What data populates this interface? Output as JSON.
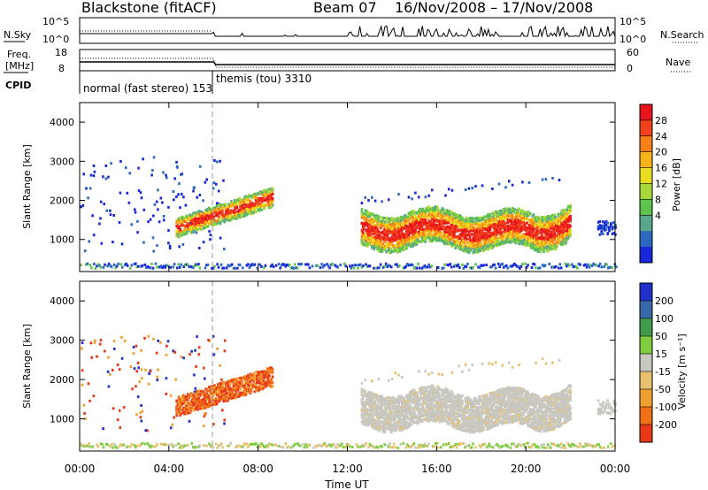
{
  "header": {
    "station": "Blackstone (fitACF)",
    "beam": "Beam 07",
    "date_range": "16/Nov/2008 – 17/Nov/2008"
  },
  "chart_data": [
    {
      "type": "line",
      "name": "noise-panel",
      "left_label": "N.Sky",
      "right_label": "N.Search",
      "left_ticks": [
        "10^5",
        "10^0"
      ],
      "right_ticks": [
        "10^5",
        "10^0"
      ]
    },
    {
      "type": "line",
      "name": "freq-panel",
      "left_label_1": "Freq.",
      "left_label_2": "[MHz]",
      "right_label": "Nave",
      "left_ticks": [
        "18",
        "8"
      ],
      "right_ticks": [
        "60",
        "0"
      ],
      "cpid_label": "CPID",
      "modes": [
        {
          "label": "normal (fast stereo) 153",
          "start_hour": 0,
          "end_hour": 6
        },
        {
          "label": "themis (tou) 3310",
          "start_hour": 6,
          "end_hour": 24
        }
      ]
    },
    {
      "type": "heatmap",
      "name": "power-panel",
      "ylabel": "Slant Range [km]",
      "ylim": [
        180,
        4500
      ],
      "yticks": [
        1000,
        2000,
        3000,
        4000
      ],
      "xlim": [
        0,
        24
      ],
      "xticks": [
        "00:00",
        "04:00",
        "08:00",
        "12:00",
        "16:00",
        "20:00",
        "00:00"
      ],
      "colorbar": {
        "label": "Power [dB]",
        "ticks": [
          "28",
          "24",
          "20",
          "16",
          "12",
          "8",
          "4"
        ],
        "colors": [
          "#e8141c",
          "#f0401c",
          "#f88018",
          "#f8b418",
          "#e8dc20",
          "#a8d838",
          "#5cc44c",
          "#5aa88c",
          "#2c68c0",
          "#1828d8"
        ]
      }
    },
    {
      "type": "heatmap",
      "name": "velocity-panel",
      "ylabel": "Slant Range [km]",
      "ylim": [
        180,
        4500
      ],
      "yticks": [
        1000,
        2000,
        3000,
        4000
      ],
      "xlim": [
        0,
        24
      ],
      "xticks": [
        "00:00",
        "04:00",
        "08:00",
        "12:00",
        "16:00",
        "20:00",
        "00:00"
      ],
      "xlabel": "Time UT",
      "colorbar": {
        "label": "Velocity [m s⁻¹]",
        "ticks": [
          "200",
          "100",
          "50",
          "15",
          "-15",
          "-50",
          "-100",
          "-200"
        ],
        "colors": [
          "#2030c8",
          "#3868a8",
          "#409c4c",
          "#80cc40",
          "#c8c8c0",
          "#e8c070",
          "#f0a030",
          "#f07018",
          "#e83818"
        ]
      }
    }
  ]
}
